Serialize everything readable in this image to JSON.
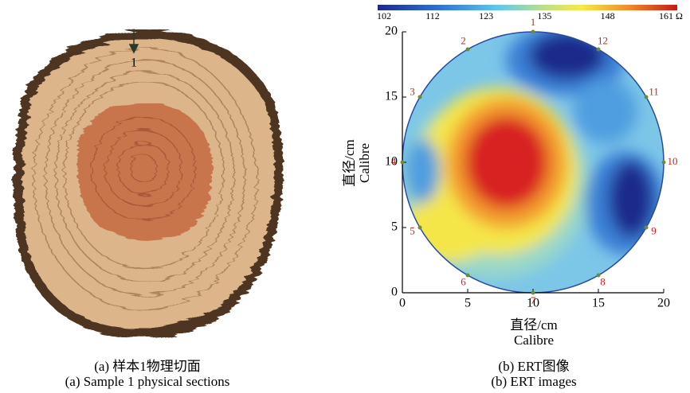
{
  "panel_a": {
    "section_marker": "1",
    "caption": [
      "(a) 样本1物理切面",
      "(a) Sample 1 physical sections"
    ]
  },
  "panel_b": {
    "colorbar_ticks": [
      102,
      112,
      123,
      135,
      148,
      {
        "value": 161,
        "label": "161 Ω"
      }
    ],
    "xticks": [
      0,
      5,
      10,
      15,
      20
    ],
    "yticks": [
      0,
      5,
      10,
      15,
      20
    ],
    "x_label": [
      "直径/cm",
      "Calibre"
    ],
    "y_label": [
      "直径/cm",
      "Calibre"
    ],
    "electrodes": [
      "1",
      "2",
      "3",
      "4",
      "5",
      "6",
      "7",
      "8",
      "9",
      "10",
      "11",
      "12"
    ],
    "caption": [
      "(b) ERT图像",
      "(b) ERT images"
    ]
  }
}
